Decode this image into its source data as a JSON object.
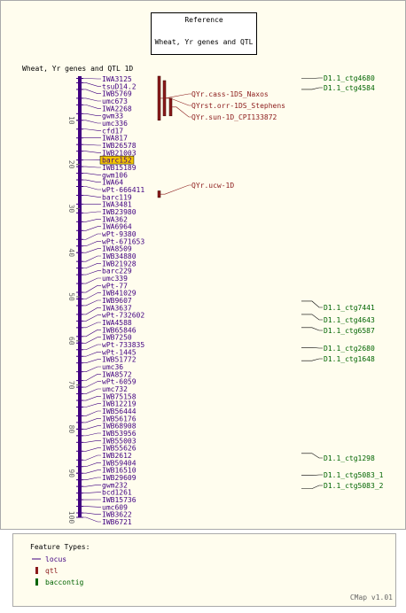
{
  "reference": {
    "title": "Reference",
    "map_name": "Wheat, Yr genes and QTL"
  },
  "map_title": "Wheat, Yr genes and QTL 1D",
  "axis": {
    "min": 0,
    "max": 100,
    "labels": [
      "10",
      "20",
      "30",
      "40",
      "50",
      "60",
      "70",
      "80",
      "90",
      "100"
    ]
  },
  "highlight": {
    "label": "barc152",
    "color": "#f2c400"
  },
  "loci": [
    {
      "label": "IWA3125",
      "pos": 0.5
    },
    {
      "label": "tsuD14.2",
      "pos": 1.5
    },
    {
      "label": "IWB5769",
      "pos": 3
    },
    {
      "label": "umc673",
      "pos": 5
    },
    {
      "label": "IWA2268",
      "pos": 6.5
    },
    {
      "label": "gwm33",
      "pos": 8.5
    },
    {
      "label": "umc336",
      "pos": 10
    },
    {
      "label": "cfd17",
      "pos": 12
    },
    {
      "label": "IWA817",
      "pos": 14
    },
    {
      "label": "IWB26578",
      "pos": 15.5
    },
    {
      "label": "IWB21003",
      "pos": 17
    },
    {
      "label": "barc152",
      "pos": 19
    },
    {
      "label": "IWB15189",
      "pos": 20.5
    },
    {
      "label": "gwm106",
      "pos": 22
    },
    {
      "label": "IWA64",
      "pos": 23.5
    },
    {
      "label": "wPt-666411",
      "pos": 25
    },
    {
      "label": "barc119",
      "pos": 27
    },
    {
      "label": "IWA3481",
      "pos": 29
    },
    {
      "label": "IWB23980",
      "pos": 31
    },
    {
      "label": "IWA362",
      "pos": 33
    },
    {
      "label": "IWA6964",
      "pos": 35
    },
    {
      "label": "wPt-9380",
      "pos": 37
    },
    {
      "label": "wPt-671653",
      "pos": 38.5
    },
    {
      "label": "IWA8509",
      "pos": 40
    },
    {
      "label": "IWB34880",
      "pos": 42
    },
    {
      "label": "IWB21928",
      "pos": 43.5
    },
    {
      "label": "barc229",
      "pos": 45
    },
    {
      "label": "umc339",
      "pos": 47
    },
    {
      "label": "wPt-77",
      "pos": 49
    },
    {
      "label": "IWB41029",
      "pos": 50.5
    },
    {
      "label": "IWB9607",
      "pos": 52
    },
    {
      "label": "IWA3637",
      "pos": 54
    },
    {
      "label": "wPt-732602",
      "pos": 55.5
    },
    {
      "label": "IWA4588",
      "pos": 57
    },
    {
      "label": "IWB65846",
      "pos": 59
    },
    {
      "label": "IWB7250",
      "pos": 60.5
    },
    {
      "label": "wPt-733835",
      "pos": 62
    },
    {
      "label": "wPt-1445",
      "pos": 63.5
    },
    {
      "label": "IWB51772",
      "pos": 65
    },
    {
      "label": "umc36",
      "pos": 67
    },
    {
      "label": "IWA8572",
      "pos": 69
    },
    {
      "label": "wPt-6059",
      "pos": 70.5
    },
    {
      "label": "umc732",
      "pos": 72
    },
    {
      "label": "IWB75158",
      "pos": 73.5
    },
    {
      "label": "IWB12219",
      "pos": 75
    },
    {
      "label": "IWB56444",
      "pos": 77
    },
    {
      "label": "IWB56176",
      "pos": 78.5
    },
    {
      "label": "IWB68908",
      "pos": 80
    },
    {
      "label": "IWB53956",
      "pos": 81.5
    },
    {
      "label": "IWB55003",
      "pos": 83
    },
    {
      "label": "IWB55626",
      "pos": 85
    },
    {
      "label": "IWB2612",
      "pos": 87
    },
    {
      "label": "IWB59404",
      "pos": 88.5
    },
    {
      "label": "IWB16510",
      "pos": 90
    },
    {
      "label": "IWB29609",
      "pos": 91.5
    },
    {
      "label": "gwm232",
      "pos": 93
    },
    {
      "label": "bcd1261",
      "pos": 94.5
    },
    {
      "label": "IWB15736",
      "pos": 96
    },
    {
      "label": "umc609",
      "pos": 97.5
    },
    {
      "label": "IWB3622",
      "pos": 99
    },
    {
      "label": "IWB6721",
      "pos": 100
    }
  ],
  "qtls": [
    {
      "label": "QYr.cass-1DS_Naxos",
      "start": 0,
      "end": 10
    },
    {
      "label": "QYrst.orr-1DS_Stephens",
      "start": 1,
      "end": 9
    },
    {
      "label": "QYr.sun-1D_CPI133872",
      "start": 5,
      "end": 9
    },
    {
      "label": "QYr.ucw-1D",
      "start": 26,
      "end": 27.5
    }
  ],
  "contigs": [
    {
      "label": "D1.1_ctg4680",
      "pos": 0.5
    },
    {
      "label": "D1.1_ctg4584",
      "pos": 3
    },
    {
      "label": "D1.1_ctg7441",
      "pos": 51
    },
    {
      "label": "D1.1_ctg4643",
      "pos": 54
    },
    {
      "label": "D1.1_ctg6587",
      "pos": 57
    },
    {
      "label": "D1.1_ctg2680",
      "pos": 61.5
    },
    {
      "label": "D1.1_ctg1648",
      "pos": 64.5
    },
    {
      "label": "D1.1_ctg1298",
      "pos": 85.5
    },
    {
      "label": "D1.1_ctg5083_1",
      "pos": 90.5
    },
    {
      "label": "D1.1_ctg5083_2",
      "pos": 93.5
    }
  ],
  "legend": {
    "title": "Feature Types:",
    "items": [
      {
        "label": "locus",
        "icon": "line",
        "color": "#400080"
      },
      {
        "label": "qtl",
        "icon": "box",
        "color": "#8b1a1a"
      },
      {
        "label": "baccontig",
        "icon": "box",
        "color": "#006400"
      }
    ]
  },
  "footer": "CMap v1.01",
  "colors": {
    "background": "#fffdee",
    "border": "#aaaaaa",
    "locus": "#400080",
    "qtl": "#8b1a1a",
    "contig": "#006400",
    "axis_text": "#666666"
  }
}
